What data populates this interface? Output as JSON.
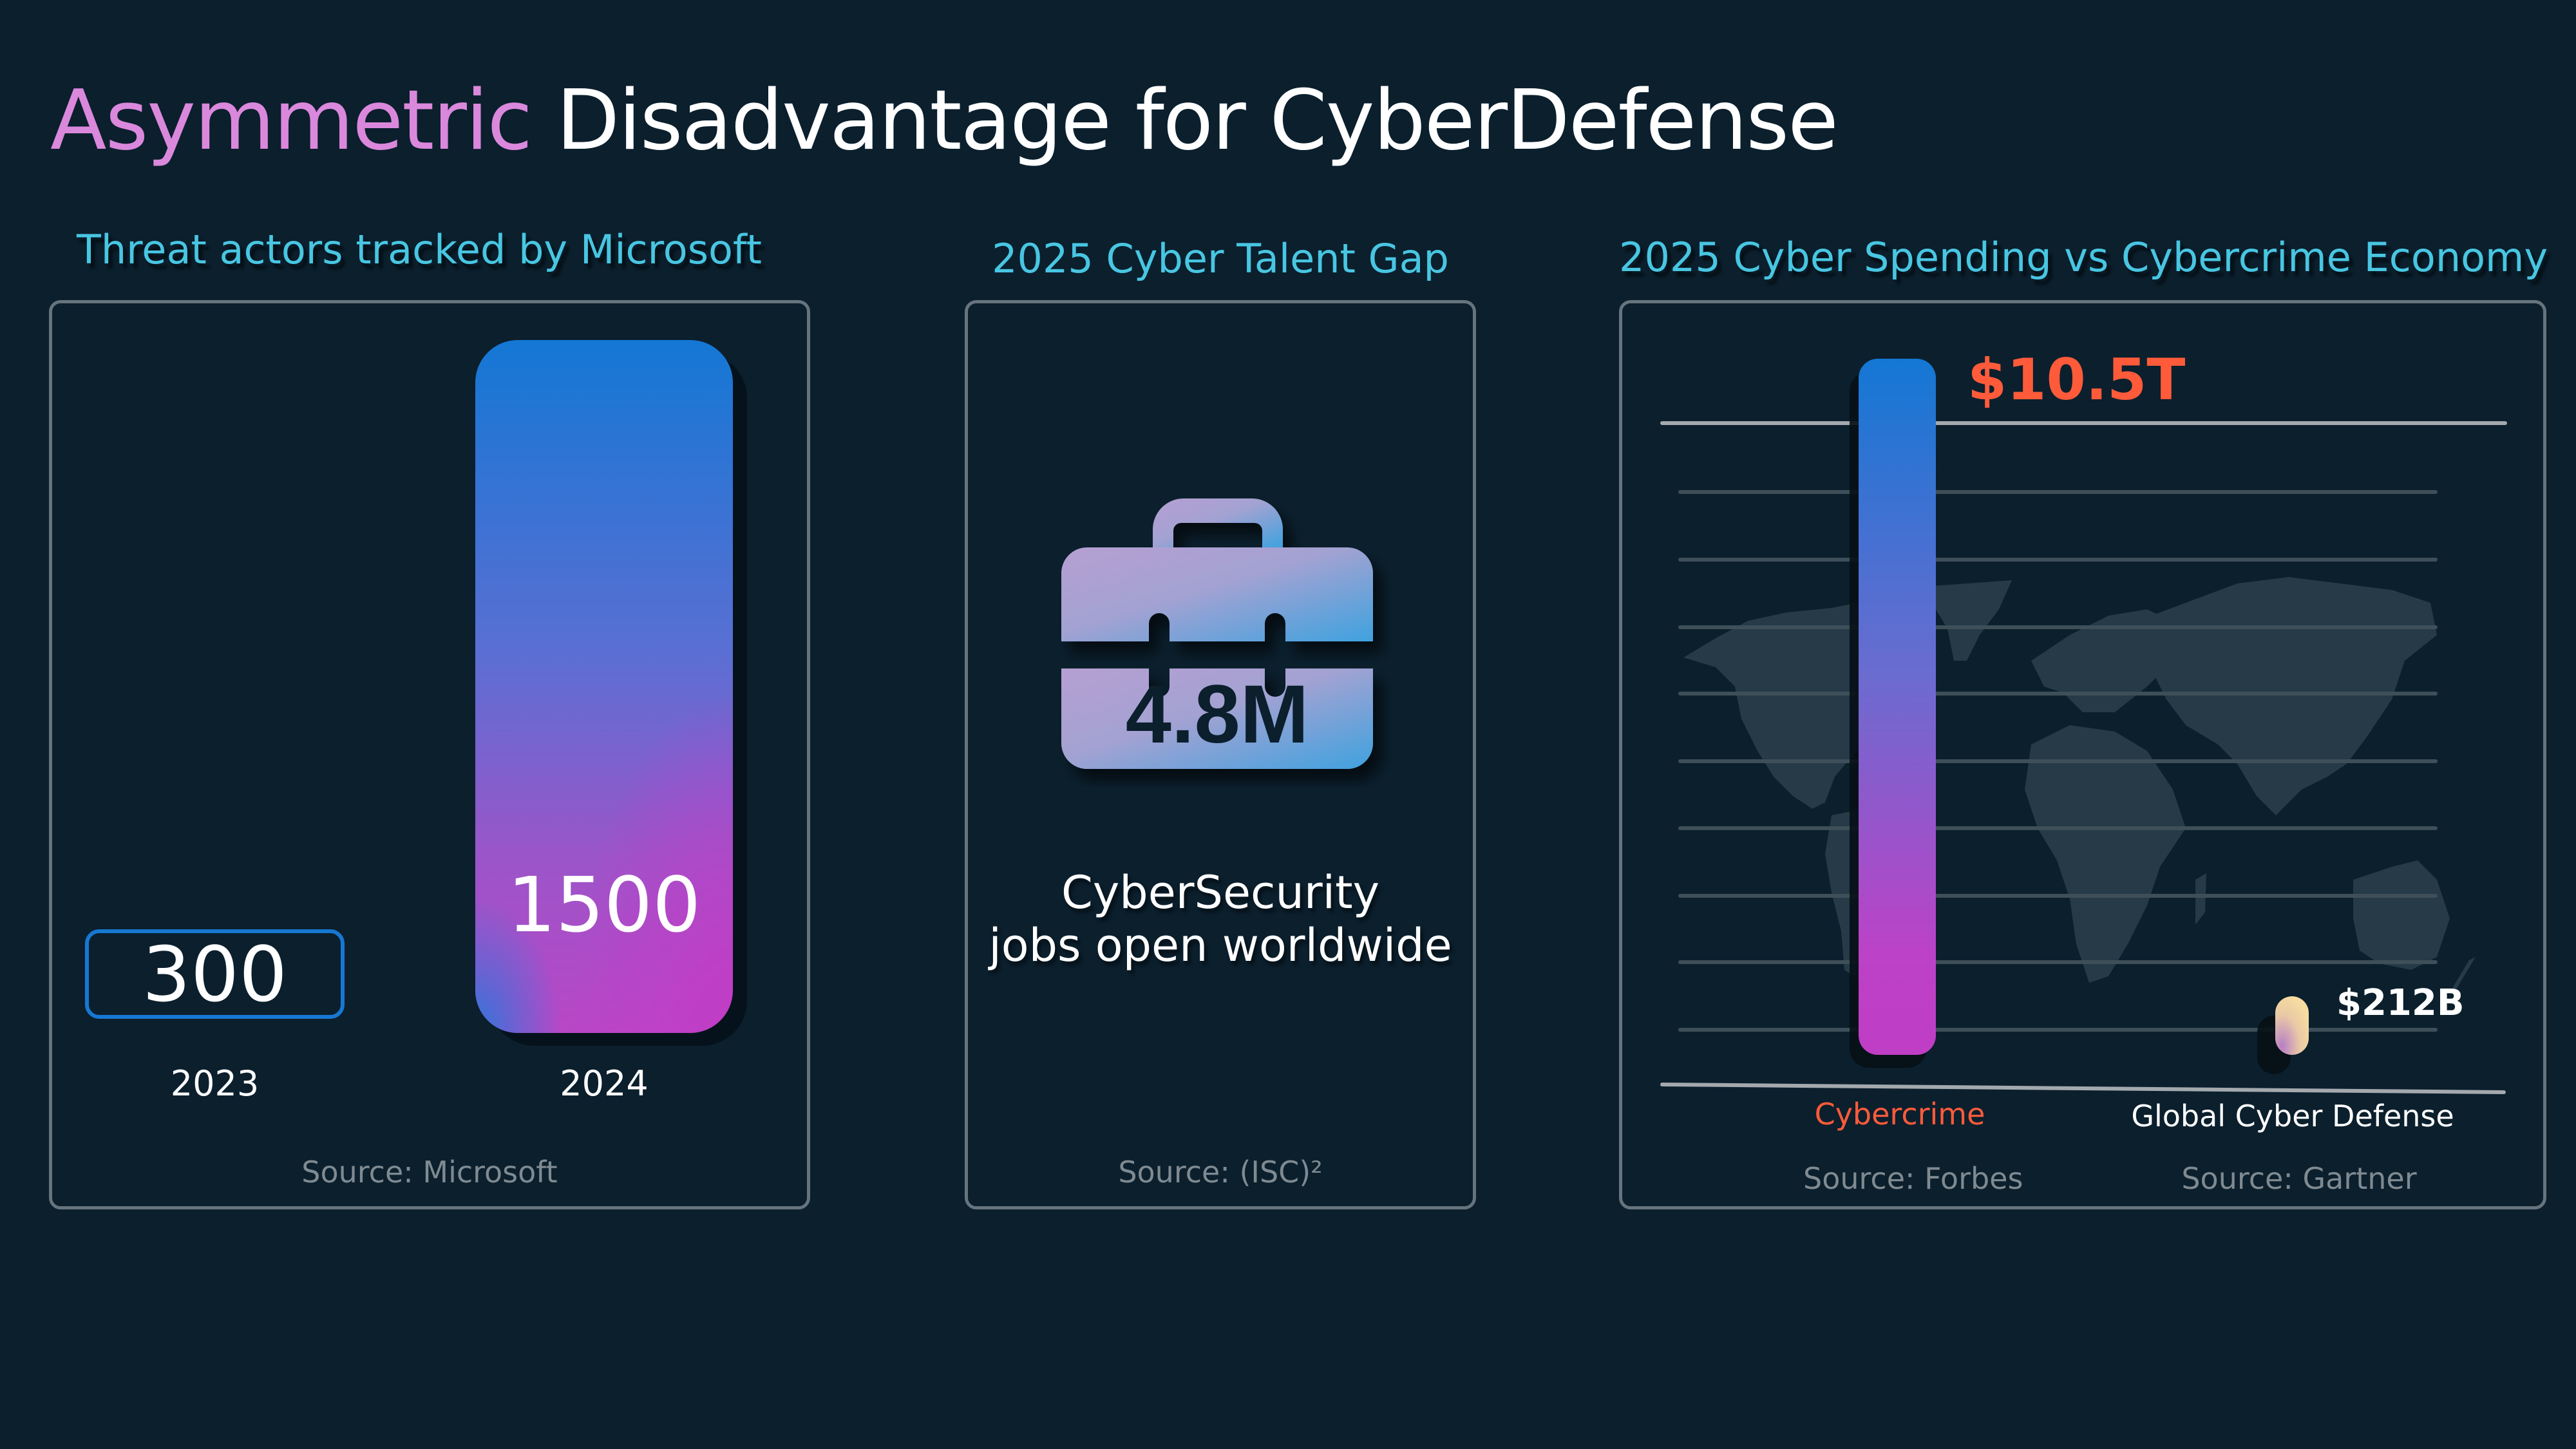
{
  "title": {
    "accent": "Asymmetric",
    "rest": " Disadvantage for CyberDefense"
  },
  "colors": {
    "background": "#0b1f2d",
    "title_accent": "#da88dc",
    "section_title": "#48c6e2",
    "card_border": "#66747d",
    "cybercrime": "#ff5b3a",
    "bar_blue": "#1477d4",
    "bar_magenta": "#c13cc6",
    "box_2023_border": "#1778d2",
    "defense_pill_top": "#f6dca0",
    "defense_pill_bottom": "#b77fc6"
  },
  "threat_actors": {
    "title": "Threat actors tracked by Microsoft",
    "bars": [
      {
        "year": "2023",
        "value_label": "300"
      },
      {
        "year": "2024",
        "value_label": "1500"
      }
    ],
    "source": "Source: Microsoft"
  },
  "talent_gap": {
    "title": "2025 Cyber Talent Gap",
    "icon": "briefcase-icon",
    "value": "4.8M",
    "description_line1": "CyberSecurity",
    "description_line2": "jobs open worldwide",
    "source": "Source: (ISC)²"
  },
  "spending": {
    "title": "2025 Cyber Spending vs Cybercrime Economy",
    "background_icon": "world-map-icon",
    "bars": [
      {
        "label": "Cybercrime",
        "value_label": "$10.5T",
        "source": "Source: Forbes"
      },
      {
        "label": "Global Cyber Defense",
        "value_label": "$212B",
        "source": "Source: Gartner"
      }
    ]
  },
  "chart_data": [
    {
      "type": "bar",
      "title": "Threat actors tracked by Microsoft",
      "categories": [
        "2023",
        "2024"
      ],
      "values": [
        300,
        1500
      ],
      "xlabel": "",
      "ylabel": "",
      "ylim": [
        0,
        1500
      ],
      "grid": false,
      "source": "Source: Microsoft"
    },
    {
      "type": "table",
      "title": "2025 Cyber Talent Gap",
      "values": [
        {
          "label": "CyberSecurity jobs open worldwide",
          "value": 4800000,
          "display": "4.8M"
        }
      ],
      "source": "Source: (ISC)²"
    },
    {
      "type": "bar",
      "title": "2025 Cyber Spending vs Cybercrime Economy",
      "categories": [
        "Cybercrime",
        "Global Cyber Defense"
      ],
      "values": [
        10500,
        212
      ],
      "units": "billion USD",
      "value_labels": [
        "$10.5T",
        "$212B"
      ],
      "xlabel": "",
      "ylabel": "",
      "ylim": [
        0,
        10500
      ],
      "grid": true,
      "sources": [
        "Source: Forbes",
        "Source: Gartner"
      ]
    }
  ]
}
